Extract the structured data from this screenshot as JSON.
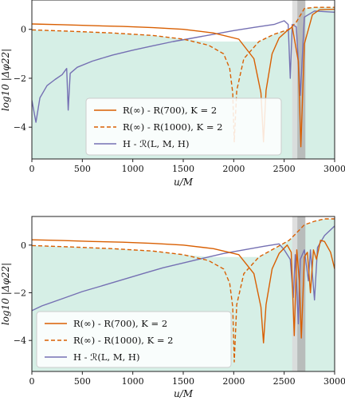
{
  "chart_data": [
    {
      "type": "line",
      "xlabel": "u/M",
      "ylabel": "log10 |Δφ22|",
      "xlim": [
        0,
        3000
      ],
      "ylim": [
        -5.3,
        1.2
      ],
      "xticks": [
        0,
        500,
        1000,
        1500,
        2000,
        2500,
        3000
      ],
      "yticks": [
        0,
        -2,
        -4
      ],
      "xtick_labels": [
        "0",
        "500",
        "1000",
        "1500",
        "2000",
        "2500",
        "3000"
      ],
      "ytick_labels": [
        "0",
        "−2",
        "−4"
      ],
      "grid": false,
      "legend_placement": "bottom-center",
      "shaded_bands": [
        {
          "x0": 2580,
          "x1": 2630,
          "color": "#d9d9d9"
        },
        {
          "x0": 2630,
          "x1": 2710,
          "color": "#b3b3b3"
        }
      ],
      "fill_color": "#d6efe6",
      "series": [
        {
          "name": "R(∞) - R(700), K = 2",
          "style": "solid",
          "color": "#d95f02",
          "points": [
            [
              0,
              0.22
            ],
            [
              300,
              0.19
            ],
            [
              600,
              0.15
            ],
            [
              900,
              0.12
            ],
            [
              1200,
              0.07
            ],
            [
              1500,
              0.0
            ],
            [
              1800,
              -0.15
            ],
            [
              2050,
              -0.4
            ],
            [
              2200,
              -1.2
            ],
            [
              2270,
              -2.6
            ],
            [
              2295,
              -4.6
            ],
            [
              2320,
              -2.5
            ],
            [
              2380,
              -1.0
            ],
            [
              2450,
              -0.35
            ],
            [
              2530,
              -0.05
            ],
            [
              2580,
              0.1
            ],
            [
              2640,
              -1.3
            ],
            [
              2665,
              -4.8
            ],
            [
              2700,
              -0.6
            ],
            [
              2780,
              0.6
            ],
            [
              2850,
              0.8
            ],
            [
              3000,
              0.82
            ]
          ]
        },
        {
          "name": "R(∞) - R(1000), K = 2",
          "style": "dashed",
          "color": "#d95f02",
          "points": [
            [
              0,
              -0.02
            ],
            [
              400,
              -0.08
            ],
            [
              800,
              -0.15
            ],
            [
              1200,
              -0.25
            ],
            [
              1500,
              -0.4
            ],
            [
              1750,
              -0.65
            ],
            [
              1900,
              -1.0
            ],
            [
              1960,
              -1.6
            ],
            [
              1990,
              -2.6
            ],
            [
              2005,
              -4.6
            ],
            [
              2030,
              -2.5
            ],
            [
              2100,
              -1.2
            ],
            [
              2250,
              -0.5
            ],
            [
              2400,
              -0.2
            ],
            [
              2550,
              0.0
            ],
            [
              2620,
              0.3
            ],
            [
              2700,
              0.85
            ],
            [
              2800,
              0.9
            ],
            [
              3000,
              0.9
            ]
          ]
        },
        {
          "name": "H - ℛ(L, M, H)",
          "style": "solid",
          "color": "#7570b3",
          "points": [
            [
              0,
              -2.9
            ],
            [
              40,
              -3.8
            ],
            [
              80,
              -2.8
            ],
            [
              150,
              -2.3
            ],
            [
              230,
              -2.05
            ],
            [
              300,
              -1.85
            ],
            [
              345,
              -1.6
            ],
            [
              360,
              -3.3
            ],
            [
              380,
              -1.8
            ],
            [
              450,
              -1.55
            ],
            [
              600,
              -1.3
            ],
            [
              800,
              -1.05
            ],
            [
              1000,
              -0.85
            ],
            [
              1200,
              -0.67
            ],
            [
              1400,
              -0.5
            ],
            [
              1600,
              -0.35
            ],
            [
              1800,
              -0.2
            ],
            [
              2000,
              -0.05
            ],
            [
              2200,
              0.08
            ],
            [
              2400,
              0.2
            ],
            [
              2500,
              0.35
            ],
            [
              2540,
              0.2
            ],
            [
              2560,
              -2.0
            ],
            [
              2580,
              0.2
            ],
            [
              2620,
              0.1
            ],
            [
              2660,
              -2.7
            ],
            [
              2700,
              0.5
            ],
            [
              2800,
              0.75
            ],
            [
              3000,
              0.7
            ]
          ]
        }
      ]
    },
    {
      "type": "line",
      "xlabel": "u/M",
      "ylabel": "log10 |Δφ22|",
      "xlim": [
        0,
        3000
      ],
      "ylim": [
        -5.3,
        1.2
      ],
      "xticks": [
        0,
        500,
        1000,
        1500,
        2000,
        2500,
        3000
      ],
      "yticks": [
        0,
        -2,
        -4
      ],
      "xtick_labels": [
        "0",
        "500",
        "1000",
        "1500",
        "2000",
        "2500",
        "3000"
      ],
      "ytick_labels": [
        "0",
        "−2",
        "−4"
      ],
      "grid": false,
      "legend_placement": "bottom-left",
      "shaded_bands": [
        {
          "x0": 2580,
          "x1": 2630,
          "color": "#d9d9d9"
        },
        {
          "x0": 2630,
          "x1": 2710,
          "color": "#b3b3b3"
        }
      ],
      "fill_color": "#d6efe6",
      "series": [
        {
          "name": "R(∞) - R(700), K = 2",
          "style": "solid",
          "color": "#d95f02",
          "points": [
            [
              0,
              0.22
            ],
            [
              300,
              0.19
            ],
            [
              600,
              0.15
            ],
            [
              900,
              0.12
            ],
            [
              1200,
              0.07
            ],
            [
              1500,
              0.0
            ],
            [
              1800,
              -0.15
            ],
            [
              2050,
              -0.4
            ],
            [
              2200,
              -1.2
            ],
            [
              2270,
              -2.6
            ],
            [
              2295,
              -4.1
            ],
            [
              2320,
              -2.5
            ],
            [
              2380,
              -1.0
            ],
            [
              2450,
              -0.35
            ],
            [
              2530,
              0.0
            ],
            [
              2570,
              -0.3
            ],
            [
              2600,
              -3.8
            ],
            [
              2625,
              -0.2
            ],
            [
              2650,
              -1.5
            ],
            [
              2670,
              -3.9
            ],
            [
              2700,
              -0.5
            ],
            [
              2730,
              -0.3
            ],
            [
              2760,
              -2.0
            ],
            [
              2790,
              -0.2
            ],
            [
              2820,
              -0.6
            ],
            [
              2860,
              0.2
            ],
            [
              2900,
              0.15
            ],
            [
              2960,
              -0.3
            ],
            [
              3000,
              -1.0
            ]
          ]
        },
        {
          "name": "R(∞) - R(1000), K = 2",
          "style": "dashed",
          "color": "#d95f02",
          "points": [
            [
              0,
              -0.02
            ],
            [
              400,
              -0.08
            ],
            [
              800,
              -0.15
            ],
            [
              1200,
              -0.25
            ],
            [
              1500,
              -0.4
            ],
            [
              1750,
              -0.65
            ],
            [
              1900,
              -1.0
            ],
            [
              1960,
              -1.6
            ],
            [
              1990,
              -2.6
            ],
            [
              2005,
              -4.9
            ],
            [
              2030,
              -2.5
            ],
            [
              2100,
              -1.2
            ],
            [
              2250,
              -0.5
            ],
            [
              2400,
              -0.15
            ],
            [
              2550,
              0.2
            ],
            [
              2620,
              0.5
            ],
            [
              2700,
              0.85
            ],
            [
              2800,
              1.0
            ],
            [
              2900,
              1.1
            ],
            [
              3000,
              1.1
            ]
          ]
        },
        {
          "name": "H - ℛ(L, M, H)",
          "style": "solid",
          "color": "#7570b3",
          "points": [
            [
              0,
              -2.75
            ],
            [
              100,
              -2.55
            ],
            [
              300,
              -2.25
            ],
            [
              500,
              -1.95
            ],
            [
              700,
              -1.7
            ],
            [
              900,
              -1.45
            ],
            [
              1100,
              -1.2
            ],
            [
              1300,
              -0.95
            ],
            [
              1500,
              -0.75
            ],
            [
              1700,
              -0.55
            ],
            [
              1900,
              -0.35
            ],
            [
              2100,
              -0.2
            ],
            [
              2300,
              -0.05
            ],
            [
              2450,
              0.05
            ],
            [
              2500,
              -0.2
            ],
            [
              2560,
              -0.6
            ],
            [
              2590,
              -2.2
            ],
            [
              2610,
              -0.4
            ],
            [
              2640,
              -3.3
            ],
            [
              2660,
              -0.6
            ],
            [
              2700,
              -0.2
            ],
            [
              2740,
              -1.5
            ],
            [
              2760,
              -0.2
            ],
            [
              2800,
              -2.3
            ],
            [
              2830,
              -0.1
            ],
            [
              2900,
              0.4
            ],
            [
              3000,
              0.8
            ]
          ]
        }
      ]
    }
  ]
}
